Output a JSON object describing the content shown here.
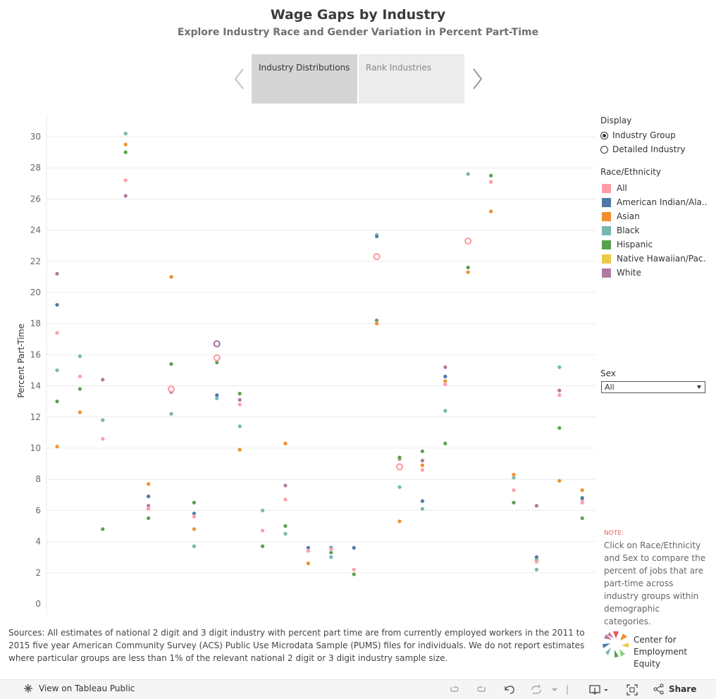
{
  "header": {
    "title": "Wage Gaps by Industry",
    "subtitle": "Explore Industry Race and Gender Variation in Percent Part-Time"
  },
  "tabs": [
    {
      "label": "Industry Distributions",
      "active": true
    },
    {
      "label": "Rank Industries",
      "active": false
    }
  ],
  "display": {
    "title": "Display",
    "options": [
      {
        "label": "Industry Group",
        "selected": true
      },
      {
        "label": "Detailed Industry",
        "selected": false
      }
    ]
  },
  "race_legend": {
    "title": "Race/Ethnicity",
    "items": [
      {
        "label": "All",
        "color": "#ff9da7"
      },
      {
        "label": "American Indian/Ala...",
        "color": "#4e79a7"
      },
      {
        "label": "Asian",
        "color": "#f28e2b"
      },
      {
        "label": "Black",
        "color": "#76b7b2"
      },
      {
        "label": "Hispanic",
        "color": "#59a14f"
      },
      {
        "label": "Native Hawaiian/Pac...",
        "color": "#edc948"
      },
      {
        "label": "White",
        "color": "#b07aa1"
      }
    ]
  },
  "sex_filter": {
    "title": "Sex",
    "value": "All"
  },
  "note": {
    "label": "NOTE:",
    "text": "Click on Race/Ethnicity and Sex to compare the percent of jobs that are part-time across industry groups within demographic categories."
  },
  "sources": "Sources: All estimates of national 2 digit and 3 digit industry with percent part time are from currently employed workers in the 2011 to 2015 five year American Community Survey (ACS) Public Use Microdata Sample (PUMS) files for individuals.  We do not report estimates where particular groups are less than 1% of the relevant national 2 digit or 3 digit industry sample size.",
  "logo": {
    "line1": "Center for",
    "line2": "Employment Equity"
  },
  "footer": {
    "view_label": "View on Tableau Public",
    "share_label": "Share"
  },
  "chart_data": {
    "type": "scatter",
    "title": "",
    "xlabel": "",
    "ylabel": "Percent Part-Time",
    "ylim": [
      0,
      32
    ],
    "yticks": [
      0,
      2,
      4,
      6,
      8,
      10,
      12,
      14,
      16,
      18,
      20,
      22,
      24,
      26,
      28,
      30
    ],
    "grid": true,
    "categories": 24,
    "series": [
      {
        "name": "All",
        "color": "#ff9da7",
        "values": [
          17.4,
          14.6,
          10.6,
          27.2,
          6.1,
          13.8,
          5.6,
          15.8,
          12.8,
          4.7,
          6.7,
          3.4,
          3.5,
          2.2,
          22.3,
          8.8,
          8.6,
          14.1,
          23.3,
          27.1,
          7.3,
          2.7,
          13.4,
          6.5
        ]
      },
      {
        "name": "American Indian/Ala...",
        "color": "#4e79a7",
        "values": [
          19.2,
          null,
          null,
          null,
          6.9,
          null,
          5.8,
          13.4,
          null,
          null,
          null,
          3.6,
          3.6,
          3.6,
          23.6,
          null,
          6.6,
          14.6,
          null,
          null,
          null,
          3.0,
          null,
          6.8
        ]
      },
      {
        "name": "Asian",
        "color": "#f28e2b",
        "values": [
          10.1,
          12.3,
          null,
          29.5,
          7.7,
          21.0,
          4.8,
          null,
          9.9,
          null,
          10.3,
          2.6,
          null,
          null,
          18.0,
          5.3,
          8.9,
          14.3,
          21.3,
          25.2,
          8.3,
          null,
          7.9,
          7.3
        ]
      },
      {
        "name": "Black",
        "color": "#76b7b2",
        "values": [
          15.0,
          15.9,
          11.8,
          30.2,
          null,
          12.2,
          3.7,
          13.2,
          11.4,
          6.0,
          4.5,
          null,
          3.0,
          null,
          23.7,
          7.5,
          6.1,
          12.4,
          27.6,
          null,
          8.1,
          2.2,
          15.2,
          null
        ]
      },
      {
        "name": "Hispanic",
        "color": "#59a14f",
        "values": [
          13.0,
          13.8,
          4.8,
          29.0,
          5.5,
          15.4,
          6.5,
          15.5,
          13.5,
          3.7,
          5.0,
          null,
          3.3,
          1.9,
          18.2,
          9.4,
          9.8,
          10.3,
          21.6,
          27.5,
          6.5,
          2.8,
          11.3,
          5.5
        ]
      },
      {
        "name": "White",
        "color": "#b07aa1",
        "values": [
          21.2,
          null,
          14.4,
          26.2,
          6.3,
          13.6,
          null,
          16.7,
          13.1,
          null,
          7.6,
          null,
          null,
          null,
          null,
          9.3,
          9.2,
          15.2,
          23.2,
          null,
          null,
          6.3,
          13.7,
          6.7
        ]
      }
    ],
    "highlighted": [
      {
        "series": "All",
        "index": 7
      },
      {
        "series": "White",
        "index": 7
      },
      {
        "series": "All",
        "index": 5
      },
      {
        "series": "All",
        "index": 14
      },
      {
        "series": "All",
        "index": 15
      },
      {
        "series": "All",
        "index": 18
      }
    ]
  }
}
